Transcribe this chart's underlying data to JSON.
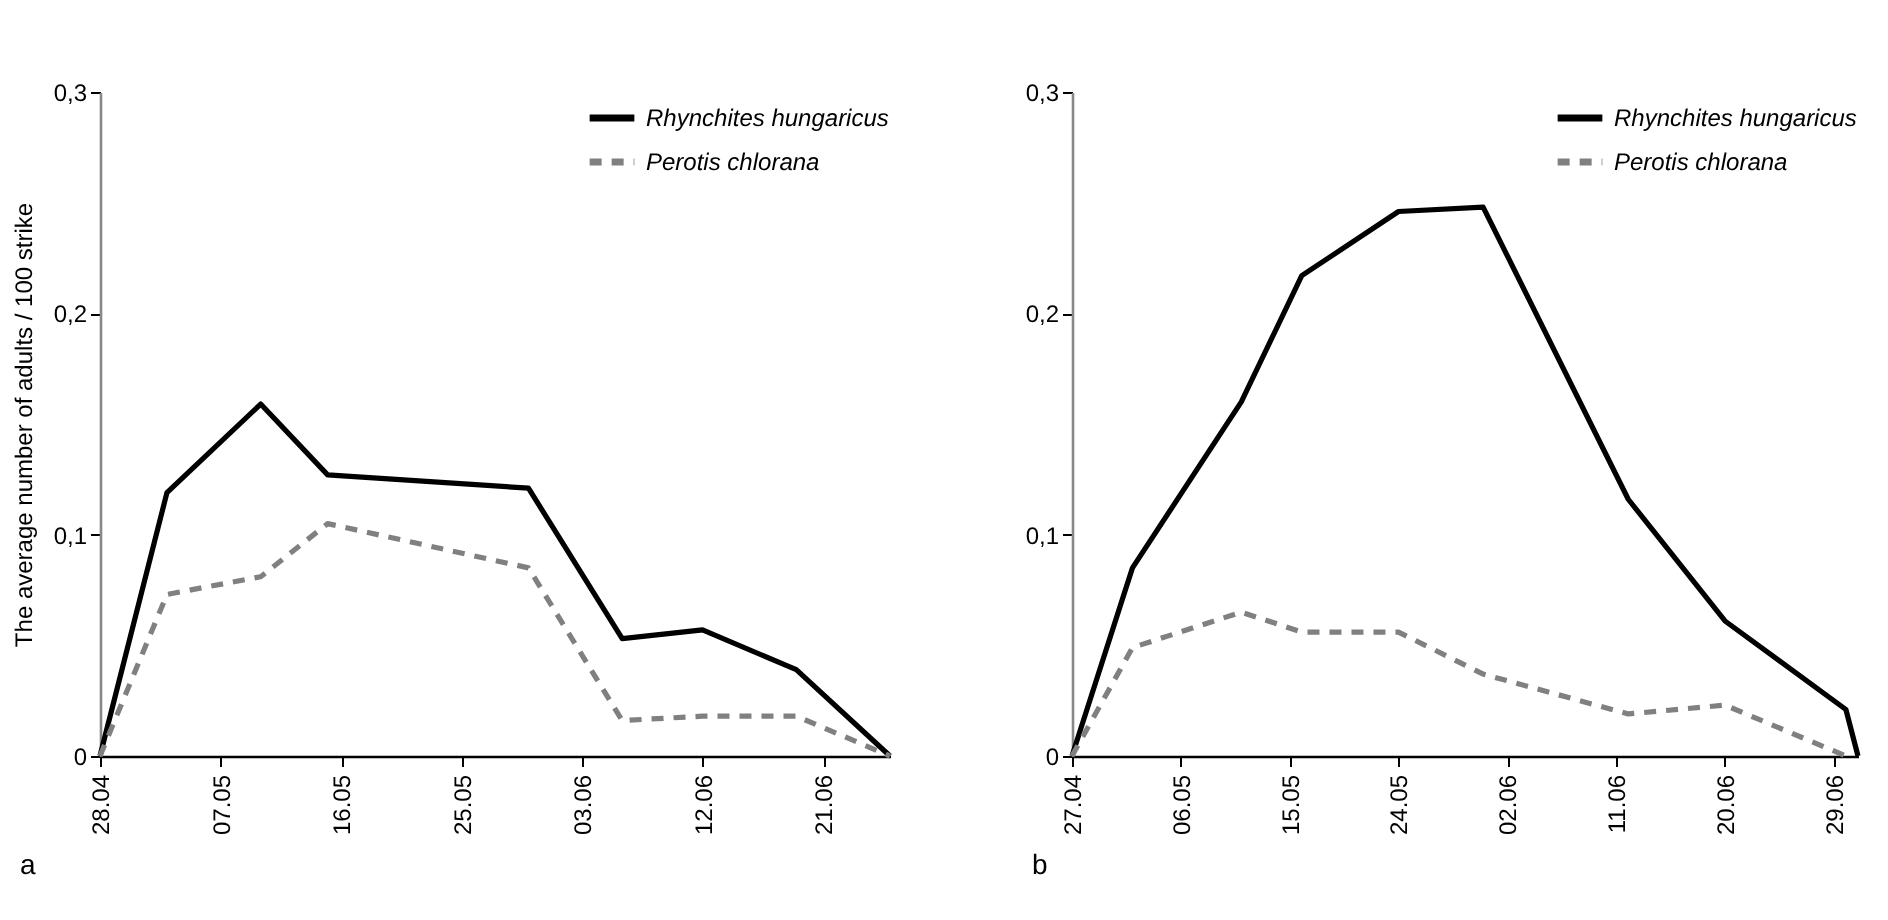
{
  "chart_data": [
    {
      "type": "line",
      "ylabel": "The average number of adults / 100 strike",
      "annotations": [
        "a"
      ],
      "legend": "top right",
      "grid": false,
      "marker": "none",
      "xlim": [
        "--04-28",
        "--06-26"
      ],
      "xticks": [
        {
          "value": "--04-28",
          "label": "28.04"
        },
        {
          "value": "--05-07",
          "label": "07.05"
        },
        {
          "value": "--05-16",
          "label": "16.05"
        },
        {
          "value": "--05-25",
          "label": "25.05"
        },
        {
          "value": "--06-03",
          "label": "03.06"
        },
        {
          "value": "--06-12",
          "label": "12.06"
        },
        {
          "value": "--06-21",
          "label": "21.06"
        }
      ],
      "ylim": [
        0,
        0.3
      ],
      "yticks": [
        0,
        {
          "value": 0.1,
          "label": "0,1"
        },
        {
          "value": 0.2,
          "label": "0,2"
        },
        {
          "value": 0.3,
          "label": "0,3"
        }
      ],
      "x": [
        "--04-28",
        "--05-03",
        "--05-10",
        "--05-15",
        "--05-30",
        "--06-06",
        "--06-12",
        "--06-19",
        "--06-26"
      ],
      "series": [
        {
          "name": "Rhynchites hungaricus",
          "color": "#000000",
          "line_style": "solid",
          "values": [
            0,
            0.119,
            0.159,
            0.127,
            0.121,
            0.053,
            0.057,
            0.039,
            0
          ]
        },
        {
          "name": "Perotis chlorana",
          "color": "#808080",
          "line_style": "dashed",
          "values": [
            0,
            0.073,
            0.081,
            0.105,
            0.085,
            0.016,
            0.018,
            0.018,
            0
          ]
        }
      ]
    },
    {
      "type": "line",
      "annotations": [
        "b"
      ],
      "legend": "top right",
      "grid": false,
      "marker": "none",
      "xlim": [
        "--04-27",
        "--07-01"
      ],
      "xticks": [
        {
          "value": "--04-27",
          "label": "27.04"
        },
        {
          "value": "--05-06",
          "label": "06.05"
        },
        {
          "value": "--05-15",
          "label": "15.05"
        },
        {
          "value": "--05-24",
          "label": "24.05"
        },
        {
          "value": "--06-02",
          "label": "02.06"
        },
        {
          "value": "--06-11",
          "label": "11.06"
        },
        {
          "value": "--06-20",
          "label": "20.06"
        },
        {
          "value": "--06-29",
          "label": "29.06"
        }
      ],
      "ylim": [
        0,
        0.3
      ],
      "yticks": [
        0,
        {
          "value": 0.1,
          "label": "0,1"
        },
        {
          "value": 0.2,
          "label": "0,2"
        },
        {
          "value": 0.3,
          "label": "0,3"
        }
      ],
      "series": [
        {
          "name": "Rhynchites hungaricus",
          "color": "#000000",
          "line_style": "solid",
          "x": [
            "--04-27",
            "--05-02",
            "--05-11",
            "--05-16",
            "--05-24",
            "--05-31",
            "--06-12",
            "--06-20",
            "--06-30",
            "--07-01"
          ],
          "values": [
            0,
            0.085,
            0.16,
            0.217,
            0.246,
            0.248,
            0.116,
            0.061,
            0.021,
            0
          ]
        },
        {
          "name": "Perotis chlorana",
          "color": "#808080",
          "line_style": "dashed",
          "x": [
            "--04-27",
            "--05-02",
            "--05-11",
            "--05-16",
            "--05-24",
            "--05-31",
            "--06-12",
            "--06-20",
            "--06-30"
          ],
          "values": [
            0,
            0.049,
            0.065,
            0.056,
            0.056,
            0.037,
            0.019,
            0.023,
            0
          ]
        }
      ]
    }
  ]
}
